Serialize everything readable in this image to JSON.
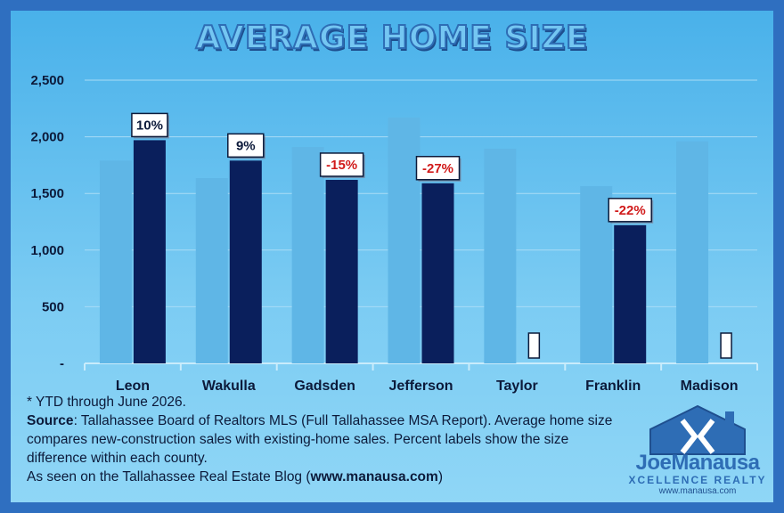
{
  "title": "AVERAGE HOME SIZE",
  "colors": {
    "frame": "#2f6fc0",
    "existing_bar": "#5fb6e6",
    "new_bar": "#0a1f5c",
    "negative_label": "#d11a1a",
    "positive_label": "#0c1a3a"
  },
  "chart_data": {
    "type": "bar",
    "categories": [
      "Leon",
      "Wakulla",
      "Gadsden",
      "Jefferson",
      "Taylor",
      "Franklin",
      "Madison"
    ],
    "series": [
      {
        "values": [
          1790,
          1635,
          1910,
          2170,
          1895,
          1565,
          1960
        ]
      },
      {
        "values": [
          1970,
          1790,
          1620,
          1590,
          0,
          1220,
          0
        ]
      }
    ],
    "data_labels": [
      "10%",
      "9%",
      "-15%",
      "-27%",
      "",
      "-22%",
      ""
    ],
    "y_ticks": [
      "-",
      "500",
      "1,000",
      "1,500",
      "2,000",
      "2,500"
    ],
    "ylim": [
      0,
      2500
    ],
    "grid": true,
    "xlabel": "",
    "ylabel": ""
  },
  "footer": {
    "note": "* YTD through June 2026.",
    "source_label": "Source",
    "source_text": ": Tallahassee Board of Realtors MLS (Full Tallahassee MSA Report). Average home size compares new-construction sales with existing-home sales. Percent labels show the size difference within each county.",
    "seen_prefix": "As seen on the Tallahassee Real Estate Blog (",
    "seen_link": "www.manausa.com",
    "seen_suffix": ")"
  },
  "logo": {
    "name": "JoeManausa",
    "sub": "XCELLENCE REALTY",
    "url": "www.manausa.com"
  }
}
